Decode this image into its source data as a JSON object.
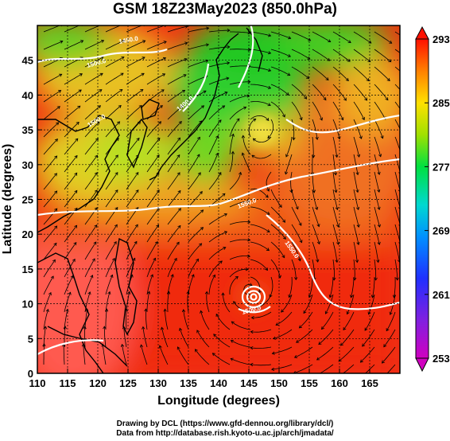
{
  "title": "GSM 18Z23May2023 (850.0hPa)",
  "credits": {
    "line1": "Drawing by DCL (https://www.gfd-dennou.org/library/dcl/)",
    "line2": "Data from http://database.rish.kyoto-u.ac.jp/arch/jmadata/"
  },
  "chart_data": {
    "type": "map",
    "field": "temperature shading with streamlines and white contours (850 hPa)",
    "xlabel": "Longitude (degrees)",
    "ylabel": "Latitude  (degrees)",
    "xlim": [
      110,
      170
    ],
    "ylim": [
      0,
      50
    ],
    "x_ticks": [
      "110",
      "115",
      "120",
      "125",
      "130",
      "135",
      "140",
      "145",
      "150",
      "155",
      "160",
      "165"
    ],
    "y_ticks": [
      "0",
      "5",
      "10",
      "15",
      "20",
      "25",
      "30",
      "35",
      "40",
      "45"
    ],
    "grid": true,
    "colorbar": {
      "position": "right",
      "min": 253,
      "max": 293,
      "tick_labels": [
        "293",
        "285",
        "277",
        "269",
        "261",
        "253"
      ],
      "colors": [
        "#d000c0",
        "#3040ff",
        "#00d0ff",
        "#00e040",
        "#ffe000",
        "#ff2000"
      ]
    },
    "features": [
      {
        "name": "typhoon circulation",
        "lon": 145,
        "lat": 12
      },
      {
        "name": "low pressure vortex",
        "lon": 147,
        "lat": 36
      },
      {
        "name": "cold air mass",
        "lon": 145,
        "lat": 45
      }
    ],
    "contour_labels": [
      "1500.0",
      "1550.0",
      "1500.0",
      "1450.0",
      "1400.0",
      "1550.0",
      "1500.0"
    ]
  }
}
